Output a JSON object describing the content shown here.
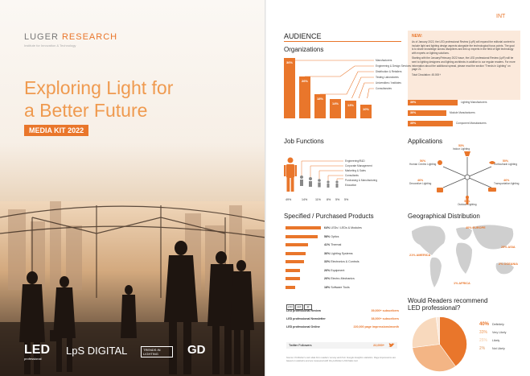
{
  "cover": {
    "brand_main": "LUGER ",
    "brand_accent": "RESEARCH",
    "tagline": "Institute for Innovation & Technology",
    "headline_line1": "Exploring Light for",
    "headline_line2": "a Better Future",
    "kit_label": "MEDIA KIT 2022",
    "logos": {
      "led": "LED",
      "led_sub": "professional",
      "lps": "LpS DIGITAL",
      "trends_line1": "TRENDS IN",
      "trends_line2": "LIGHTING",
      "gd": "GD"
    }
  },
  "page": {
    "corner_label": "INT",
    "section_title": "AUDIENCE",
    "news": {
      "title": "NEW:",
      "paragraph1": "As of January 2022, the LED professional Review (LpR) will expand the editorial content to include light and lighting design aspects alongside the technological focus points. The goal is to share knowledge across disciplines and link up experts in the field of light technology with experts on lighting solutions.",
      "paragraph2": "Starting with the January/February 2022 issue, the LED professional Review (LpR) will be sent to lighting designers and lighting architects in addition to our regular readers. For more information about the additional spread, please read the section \"Trends in Lighting\" on page 21.",
      "circulation": "Total Circulation: 45.000+"
    },
    "colors": {
      "accent": "#e9762b",
      "light_accent": "#fbe9db",
      "map_gray": "#cfcfcf"
    },
    "organizations": {
      "title": "Organizations",
      "bars": [
        {
          "pct": "36%",
          "label": "Manufacturers"
        },
        {
          "pct": "26%",
          "label": "Engineering & Design Services"
        },
        {
          "pct": "18%",
          "label": "Distribution & Retailers"
        },
        {
          "pct": "14%",
          "label": "Testing Laboratories"
        },
        {
          "pct": "13%",
          "label": "Universities / Institutes"
        },
        {
          "pct": "10%",
          "label": "Consultancies"
        }
      ]
    },
    "regions": [
      {
        "pct": "39%",
        "label": "Lighting Manufacturers"
      },
      {
        "pct": "30%",
        "label": "Module Manufacturers"
      },
      {
        "pct": "35%",
        "label": "Component Manufacturers"
      }
    ],
    "job_functions": {
      "title": "Job Functions",
      "labels": [
        "Engineering/R&D",
        "Corporate Management",
        "Marketing & Sales",
        "Consultants",
        "Purchasing & Manufacturing",
        "Education"
      ],
      "pcts": [
        "49%",
        "14%",
        "11%",
        "8%",
        "5%",
        "5%"
      ]
    },
    "applications": {
      "title": "Applications",
      "items": [
        {
          "pct": "53%",
          "label": "Indoor Lighting"
        },
        {
          "pct": "50%",
          "label": "Horticultural Lighting"
        },
        {
          "pct": "46%",
          "label": "Transportation lighting"
        },
        {
          "pct": "58%",
          "label": "Outdoor Lighting"
        },
        {
          "pct": "46%",
          "label": "Decorative Lighting"
        },
        {
          "pct": "56%",
          "label": "Human Centric Lighting"
        }
      ]
    },
    "products": {
      "title": "Specified / Purchased Products",
      "items": [
        {
          "value": 64,
          "pct": "64%",
          "label": "LEDs / LEDs & Modules"
        },
        {
          "value": 58,
          "pct": "58%",
          "label": "Optics"
        },
        {
          "value": 41,
          "pct": "41%",
          "label": "Thermal"
        },
        {
          "value": 36,
          "pct": "36%",
          "label": "Lighting Systems"
        },
        {
          "value": 33,
          "pct": "33%",
          "label": "Electronics & Controls"
        },
        {
          "value": 26,
          "pct": "26%",
          "label": "Equipment"
        },
        {
          "value": 26,
          "pct": "26%",
          "label": "Electro-Mechanics"
        },
        {
          "value": 18,
          "pct": "18%",
          "label": "Software Tools"
        }
      ]
    },
    "circulation": {
      "rows": [
        {
          "name": "LED professional Review",
          "value": "39,000+ subscribers"
        },
        {
          "name": "LED professional Newsletter",
          "value": "38,000+ subscribers"
        },
        {
          "name": "LED professional Online",
          "value": "220,000 page impressions/month"
        }
      ],
      "icon_labels": [
        "print",
        "web",
        "@"
      ]
    },
    "twitter": {
      "label": "Twitter Followers",
      "value": "22,000+"
    },
    "source": "Source: Publisher's own data from readers' survey and from Google Analytics statistics. Page impressions are based on statistics and are measured with the publisher's AW-Stats tool.",
    "geo": {
      "title": "Geographical Distribution",
      "labels": {
        "europe": "40% EUROPE",
        "asia": "29% ASIA",
        "americas": "21% AMERICA",
        "oceania": "2% OCEANIA",
        "africa": "1% AFRICA"
      }
    },
    "recommend": {
      "title_line1": "Would Readers recommend",
      "title_line2": "LED professional?",
      "items": [
        {
          "value": 40,
          "pct": "40%",
          "label": "Definitely",
          "color": "#e9762b"
        },
        {
          "value": 33,
          "pct": "33%",
          "label": "Very Likely",
          "color": "#f3b585"
        },
        {
          "value": 25,
          "pct": "25%",
          "label": "Likely",
          "color": "#f8d9bd"
        },
        {
          "value": 2,
          "pct": "2%",
          "label": "Not Likely",
          "color": "#fbe9db"
        }
      ]
    }
  }
}
